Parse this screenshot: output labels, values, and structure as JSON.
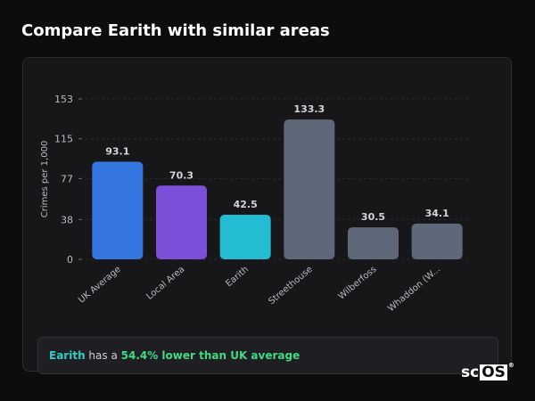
{
  "page": {
    "title": "Compare Earith with similar areas"
  },
  "summary": {
    "area": "Earith",
    "connector": " has a ",
    "stat": "54.4% lower than UK average"
  },
  "logo": {
    "sc": "sc",
    "os": "OS",
    "reg": "®"
  },
  "colors": {
    "uk": "#3576e0",
    "local": "#7b4fd8",
    "focus": "#23bcd2",
    "other": "#5f6878",
    "grid": "#2a2a2f",
    "text": "#b8b8c0"
  },
  "chart_data": {
    "type": "bar",
    "ylabel": "Crimes per 1,000",
    "yticks": [
      0,
      38,
      77,
      115,
      153
    ],
    "ylim": [
      0,
      153
    ],
    "grid": true,
    "categories": [
      "UK Average",
      "Local Area",
      "Earith",
      "Streethouse",
      "Wilberfoss",
      "Whaddon (W..."
    ],
    "values": [
      93.1,
      70.3,
      42.5,
      133.3,
      30.5,
      34.1
    ],
    "value_labels": [
      "93.1",
      "70.3",
      "42.5",
      "133.3",
      "30.5",
      "34.1"
    ],
    "bar_colors": [
      "#3576e0",
      "#7b4fd8",
      "#23bcd2",
      "#5f6878",
      "#5f6878",
      "#5f6878"
    ]
  }
}
